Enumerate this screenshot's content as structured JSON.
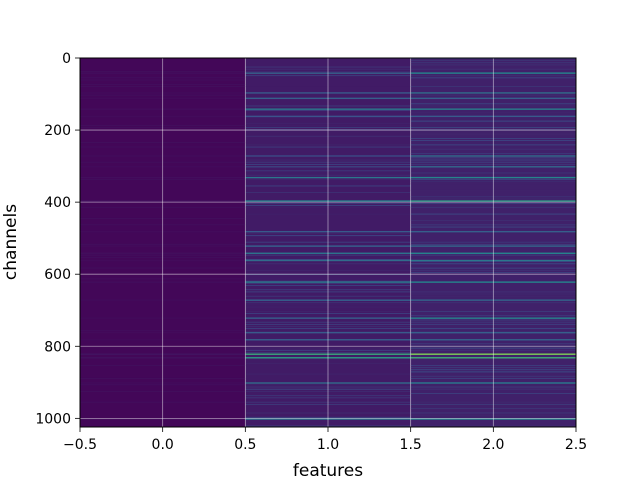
{
  "chart_data": {
    "type": "heatmap",
    "title": "",
    "xlabel": "features",
    "ylabel": "channels",
    "xlim": [
      -0.5,
      2.5
    ],
    "ylim": [
      1024,
      0
    ],
    "y_inverted": true,
    "grid": true,
    "colormap": "viridis",
    "n_columns": 3,
    "n_rows": 1024,
    "x_ticks": [
      {
        "value": -0.5,
        "label": "−0.5"
      },
      {
        "value": 0.0,
        "label": "0.0"
      },
      {
        "value": 0.5,
        "label": "0.5"
      },
      {
        "value": 1.0,
        "label": "1.0"
      },
      {
        "value": 1.5,
        "label": "1.5"
      },
      {
        "value": 2.0,
        "label": "2.0"
      },
      {
        "value": 2.5,
        "label": "2.5"
      }
    ],
    "y_ticks": [
      {
        "value": 0,
        "label": "0"
      },
      {
        "value": 200,
        "label": "200"
      },
      {
        "value": 400,
        "label": "400"
      },
      {
        "value": 600,
        "label": "600"
      },
      {
        "value": 800,
        "label": "800"
      },
      {
        "value": 1000,
        "label": "1000"
      }
    ],
    "column_baseline": [
      0.02,
      0.08,
      0.1
    ],
    "highlight_rows": [
      {
        "row": 40,
        "values": [
          0.04,
          0.3,
          0.45
        ]
      },
      {
        "row": 95,
        "values": [
          0.03,
          0.28,
          0.35
        ]
      },
      {
        "row": 110,
        "values": [
          0.03,
          0.3,
          0.3
        ]
      },
      {
        "row": 140,
        "values": [
          0.04,
          0.4,
          0.42
        ]
      },
      {
        "row": 160,
        "values": [
          0.03,
          0.25,
          0.28
        ]
      },
      {
        "row": 270,
        "values": [
          0.03,
          0.22,
          0.35
        ]
      },
      {
        "row": 300,
        "values": [
          0.03,
          0.2,
          0.33
        ]
      },
      {
        "row": 330,
        "values": [
          0.04,
          0.4,
          0.45
        ]
      },
      {
        "row": 395,
        "values": [
          0.05,
          0.45,
          0.55
        ]
      },
      {
        "row": 480,
        "values": [
          0.03,
          0.28,
          0.3
        ]
      },
      {
        "row": 520,
        "values": [
          0.03,
          0.3,
          0.32
        ]
      },
      {
        "row": 540,
        "values": [
          0.04,
          0.38,
          0.45
        ]
      },
      {
        "row": 560,
        "values": [
          0.03,
          0.35,
          0.4
        ]
      },
      {
        "row": 620,
        "values": [
          0.04,
          0.4,
          0.45
        ]
      },
      {
        "row": 670,
        "values": [
          0.03,
          0.3,
          0.32
        ]
      },
      {
        "row": 720,
        "values": [
          0.03,
          0.3,
          0.45
        ]
      },
      {
        "row": 760,
        "values": [
          0.03,
          0.28,
          0.3
        ]
      },
      {
        "row": 780,
        "values": [
          0.03,
          0.3,
          0.32
        ]
      },
      {
        "row": 820,
        "values": [
          0.06,
          0.6,
          0.8
        ]
      },
      {
        "row": 830,
        "values": [
          0.05,
          0.55,
          0.62
        ]
      },
      {
        "row": 900,
        "values": [
          0.03,
          0.35,
          0.4
        ]
      },
      {
        "row": 1000,
        "values": [
          0.04,
          0.4,
          0.45
        ]
      }
    ]
  }
}
